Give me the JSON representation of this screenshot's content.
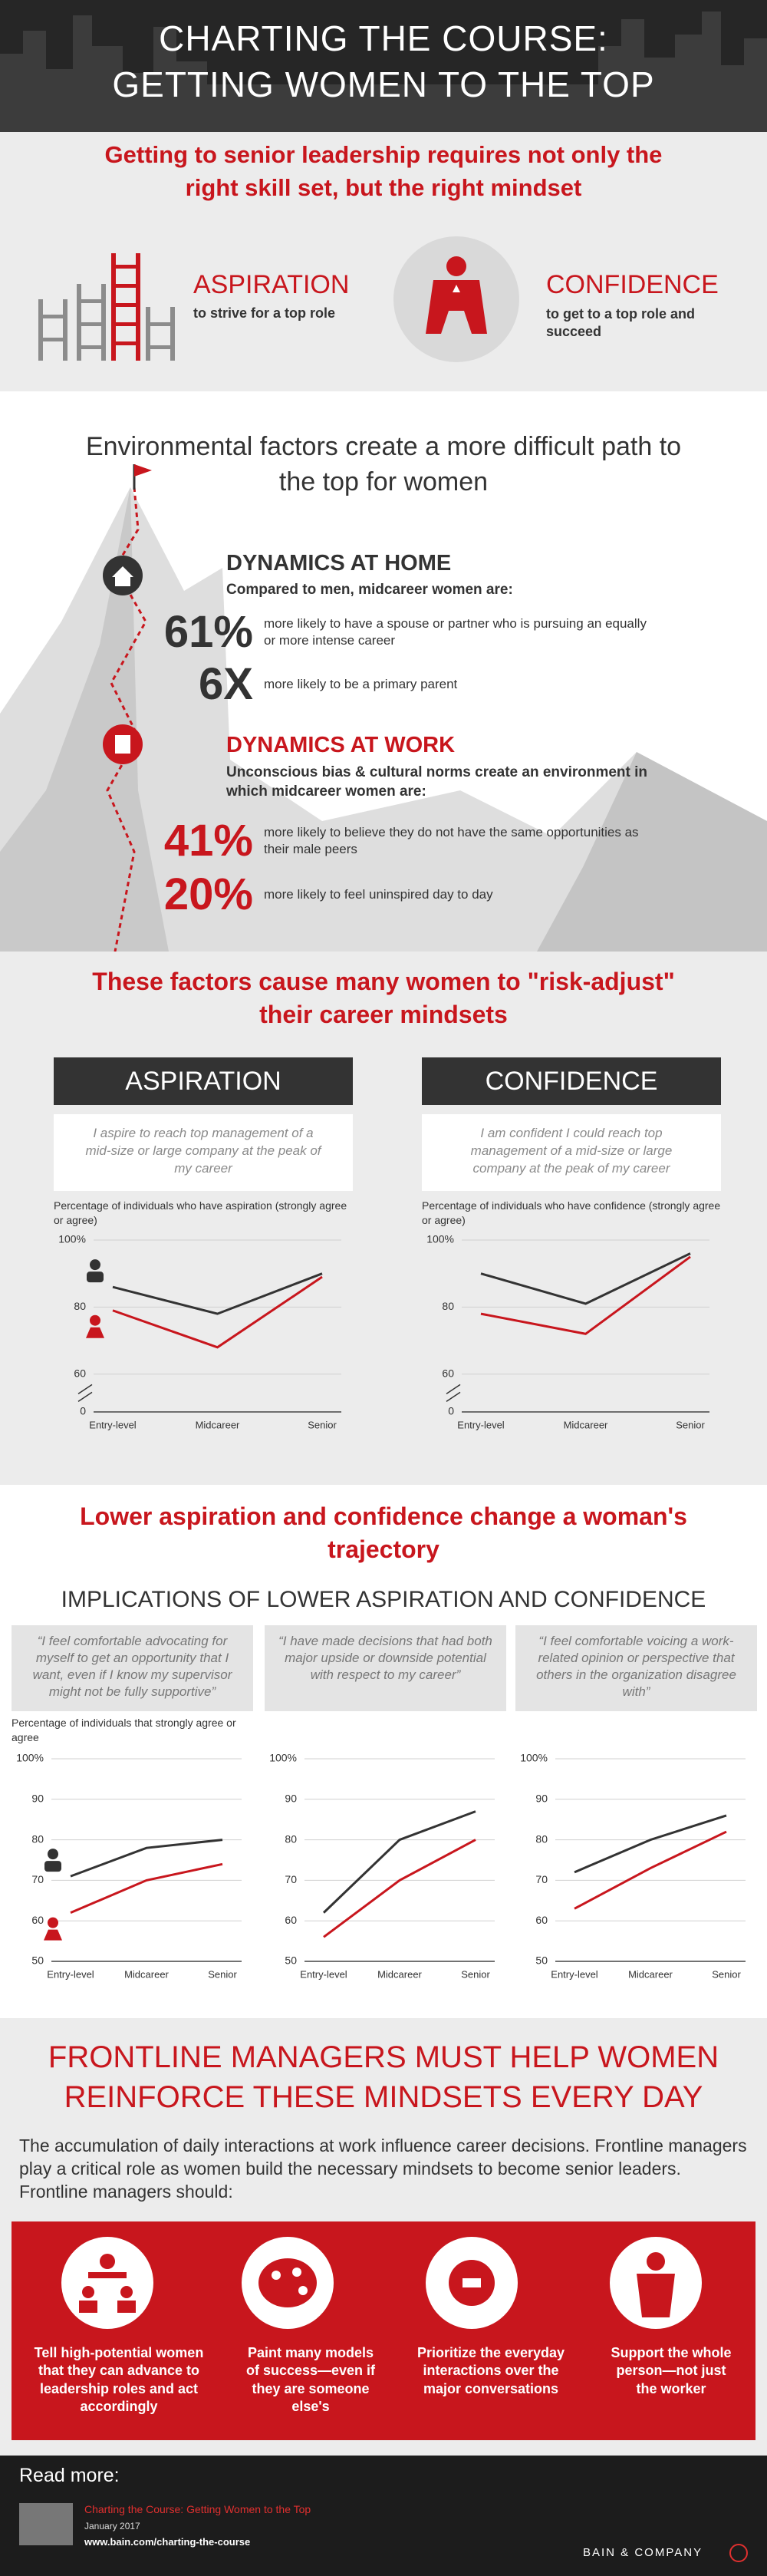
{
  "header": {
    "title_lines": [
      "CHARTING THE COURSE:",
      "GETTING WOMEN TO THE TOP"
    ]
  },
  "mindset": {
    "heading": "Getting to senior leadership requires not only the right skill set, but the right mindset",
    "aspiration": {
      "title": "ASPIRATION",
      "text": "to strive for a top role"
    },
    "confidence": {
      "title": "CONFIDENCE",
      "text": "to get to a top role and succeed"
    }
  },
  "environment": {
    "heading": "Environmental factors create a more difficult path to the top for women",
    "home": {
      "title": "DYNAMICS AT HOME",
      "intro": "Compared to men, midcareer women are:",
      "stats": [
        {
          "value": "61%",
          "text": "more likely to have a spouse or partner who is pursuing an equally or more intense career"
        },
        {
          "value": "6X",
          "text": "more likely to be a primary parent"
        }
      ]
    },
    "work": {
      "title": "DYNAMICS AT WORK",
      "intro": "Unconscious bias & cultural norms create an environment in which midcareer women are:",
      "stats": [
        {
          "value": "41%",
          "text": "more likely to believe they do not have the same opportunities as their male peers"
        },
        {
          "value": "20%",
          "text": "more likely to feel uninspired day to day"
        }
      ]
    }
  },
  "risk_adjust": {
    "heading": "These factors cause many women to \"risk-adjust\" their career mindsets"
  },
  "trajectory": {
    "heading": "Lower aspiration and confidence change a woman's trajectory",
    "subheading": "IMPLICATIONS OF LOWER ASPIRATION AND CONFIDENCE",
    "ylabel": "Percentage of individuals that strongly agree or agree"
  },
  "chart_data": [
    {
      "type": "line",
      "title": "ASPIRATION",
      "subtitle": "I aspire to reach top management of a mid-size or large company at the peak of my career",
      "y_label": "Percentage of individuals who have aspiration (strongly agree or agree)",
      "categories": [
        "Entry-level",
        "Midcareer",
        "Senior"
      ],
      "series": [
        {
          "color": "#333333",
          "values": [
            86,
            78,
            90
          ]
        },
        {
          "color": "#c8161d",
          "values": [
            79,
            68,
            89
          ]
        }
      ],
      "ylim": [
        0,
        100
      ],
      "yticks": [
        0,
        60,
        80,
        {
          "value": 100,
          "label": "100%"
        }
      ],
      "axis_break": [
        0,
        60
      ],
      "grid": true
    },
    {
      "type": "line",
      "title": "CONFIDENCE",
      "subtitle": "I am confident I could reach top management of a mid-size or large company at the peak of my career",
      "y_label": "Percentage of individuals who have confidence (strongly agree or agree)",
      "categories": [
        "Entry-level",
        "Midcareer",
        "Senior"
      ],
      "series": [
        {
          "color": "#333333",
          "values": [
            90,
            81,
            96
          ]
        },
        {
          "color": "#c8161d",
          "values": [
            78,
            72,
            95
          ]
        }
      ],
      "ylim": [
        0,
        100
      ],
      "yticks": [
        0,
        60,
        80,
        {
          "value": 100,
          "label": "100%"
        }
      ],
      "axis_break": [
        0,
        60
      ],
      "grid": true
    },
    {
      "type": "line",
      "subtitle": "“I feel comfortable advocating for myself to get an opportunity that I want, even if I know my supervisor might not be fully supportive”",
      "categories": [
        "Entry-level",
        "Midcareer",
        "Senior"
      ],
      "series": [
        {
          "color": "#333333",
          "values": [
            71,
            78,
            80
          ]
        },
        {
          "color": "#c8161d",
          "values": [
            62,
            70,
            74
          ]
        }
      ],
      "ylim": [
        50,
        100
      ],
      "yticks": [
        50,
        60,
        70,
        80,
        90,
        {
          "value": 100,
          "label": "100%"
        }
      ],
      "grid": true
    },
    {
      "type": "line",
      "subtitle": "“I have made decisions that had both major upside or downside potential with respect to my career”",
      "categories": [
        "Entry-level",
        "Midcareer",
        "Senior"
      ],
      "series": [
        {
          "color": "#333333",
          "values": [
            62,
            80,
            87
          ]
        },
        {
          "color": "#c8161d",
          "values": [
            56,
            70,
            80
          ]
        }
      ],
      "ylim": [
        50,
        100
      ],
      "yticks": [
        50,
        60,
        70,
        80,
        90,
        {
          "value": 100,
          "label": "100%"
        }
      ],
      "grid": true
    },
    {
      "type": "line",
      "subtitle": "“I feel comfortable voicing a work-related opinion or perspective that others in the organization disagree with”",
      "categories": [
        "Entry-level",
        "Midcareer",
        "Senior"
      ],
      "series": [
        {
          "color": "#333333",
          "values": [
            72,
            80,
            86
          ]
        },
        {
          "color": "#c8161d",
          "values": [
            63,
            73,
            82
          ]
        }
      ],
      "ylim": [
        50,
        100
      ],
      "yticks": [
        50,
        60,
        70,
        80,
        90,
        {
          "value": 100,
          "label": "100%"
        }
      ],
      "grid": true
    }
  ],
  "frontline": {
    "heading": "FRONTLINE MANAGERS MUST HELP WOMEN REINFORCE THESE MINDSETS EVERY DAY",
    "text": "The accumulation of daily interactions at work influence career decisions. Frontline managers play a critical role as women build the necessary mindsets to become senior leaders. Frontline managers should:",
    "actions": [
      "Tell high-potential women that they can advance to leadership roles and act accordingly",
      "Paint many models of success—even if they are someone else's",
      "Prioritize the everyday interactions over the major conversations",
      "Support the whole person—not just the worker"
    ]
  },
  "footer": {
    "read_more": "Read more:",
    "report_title": "Charting the Course: Getting Women to the Top",
    "date": "January 2017",
    "url": "www.bain.com/charting-the-course",
    "brand": "BAIN & COMPANY"
  }
}
